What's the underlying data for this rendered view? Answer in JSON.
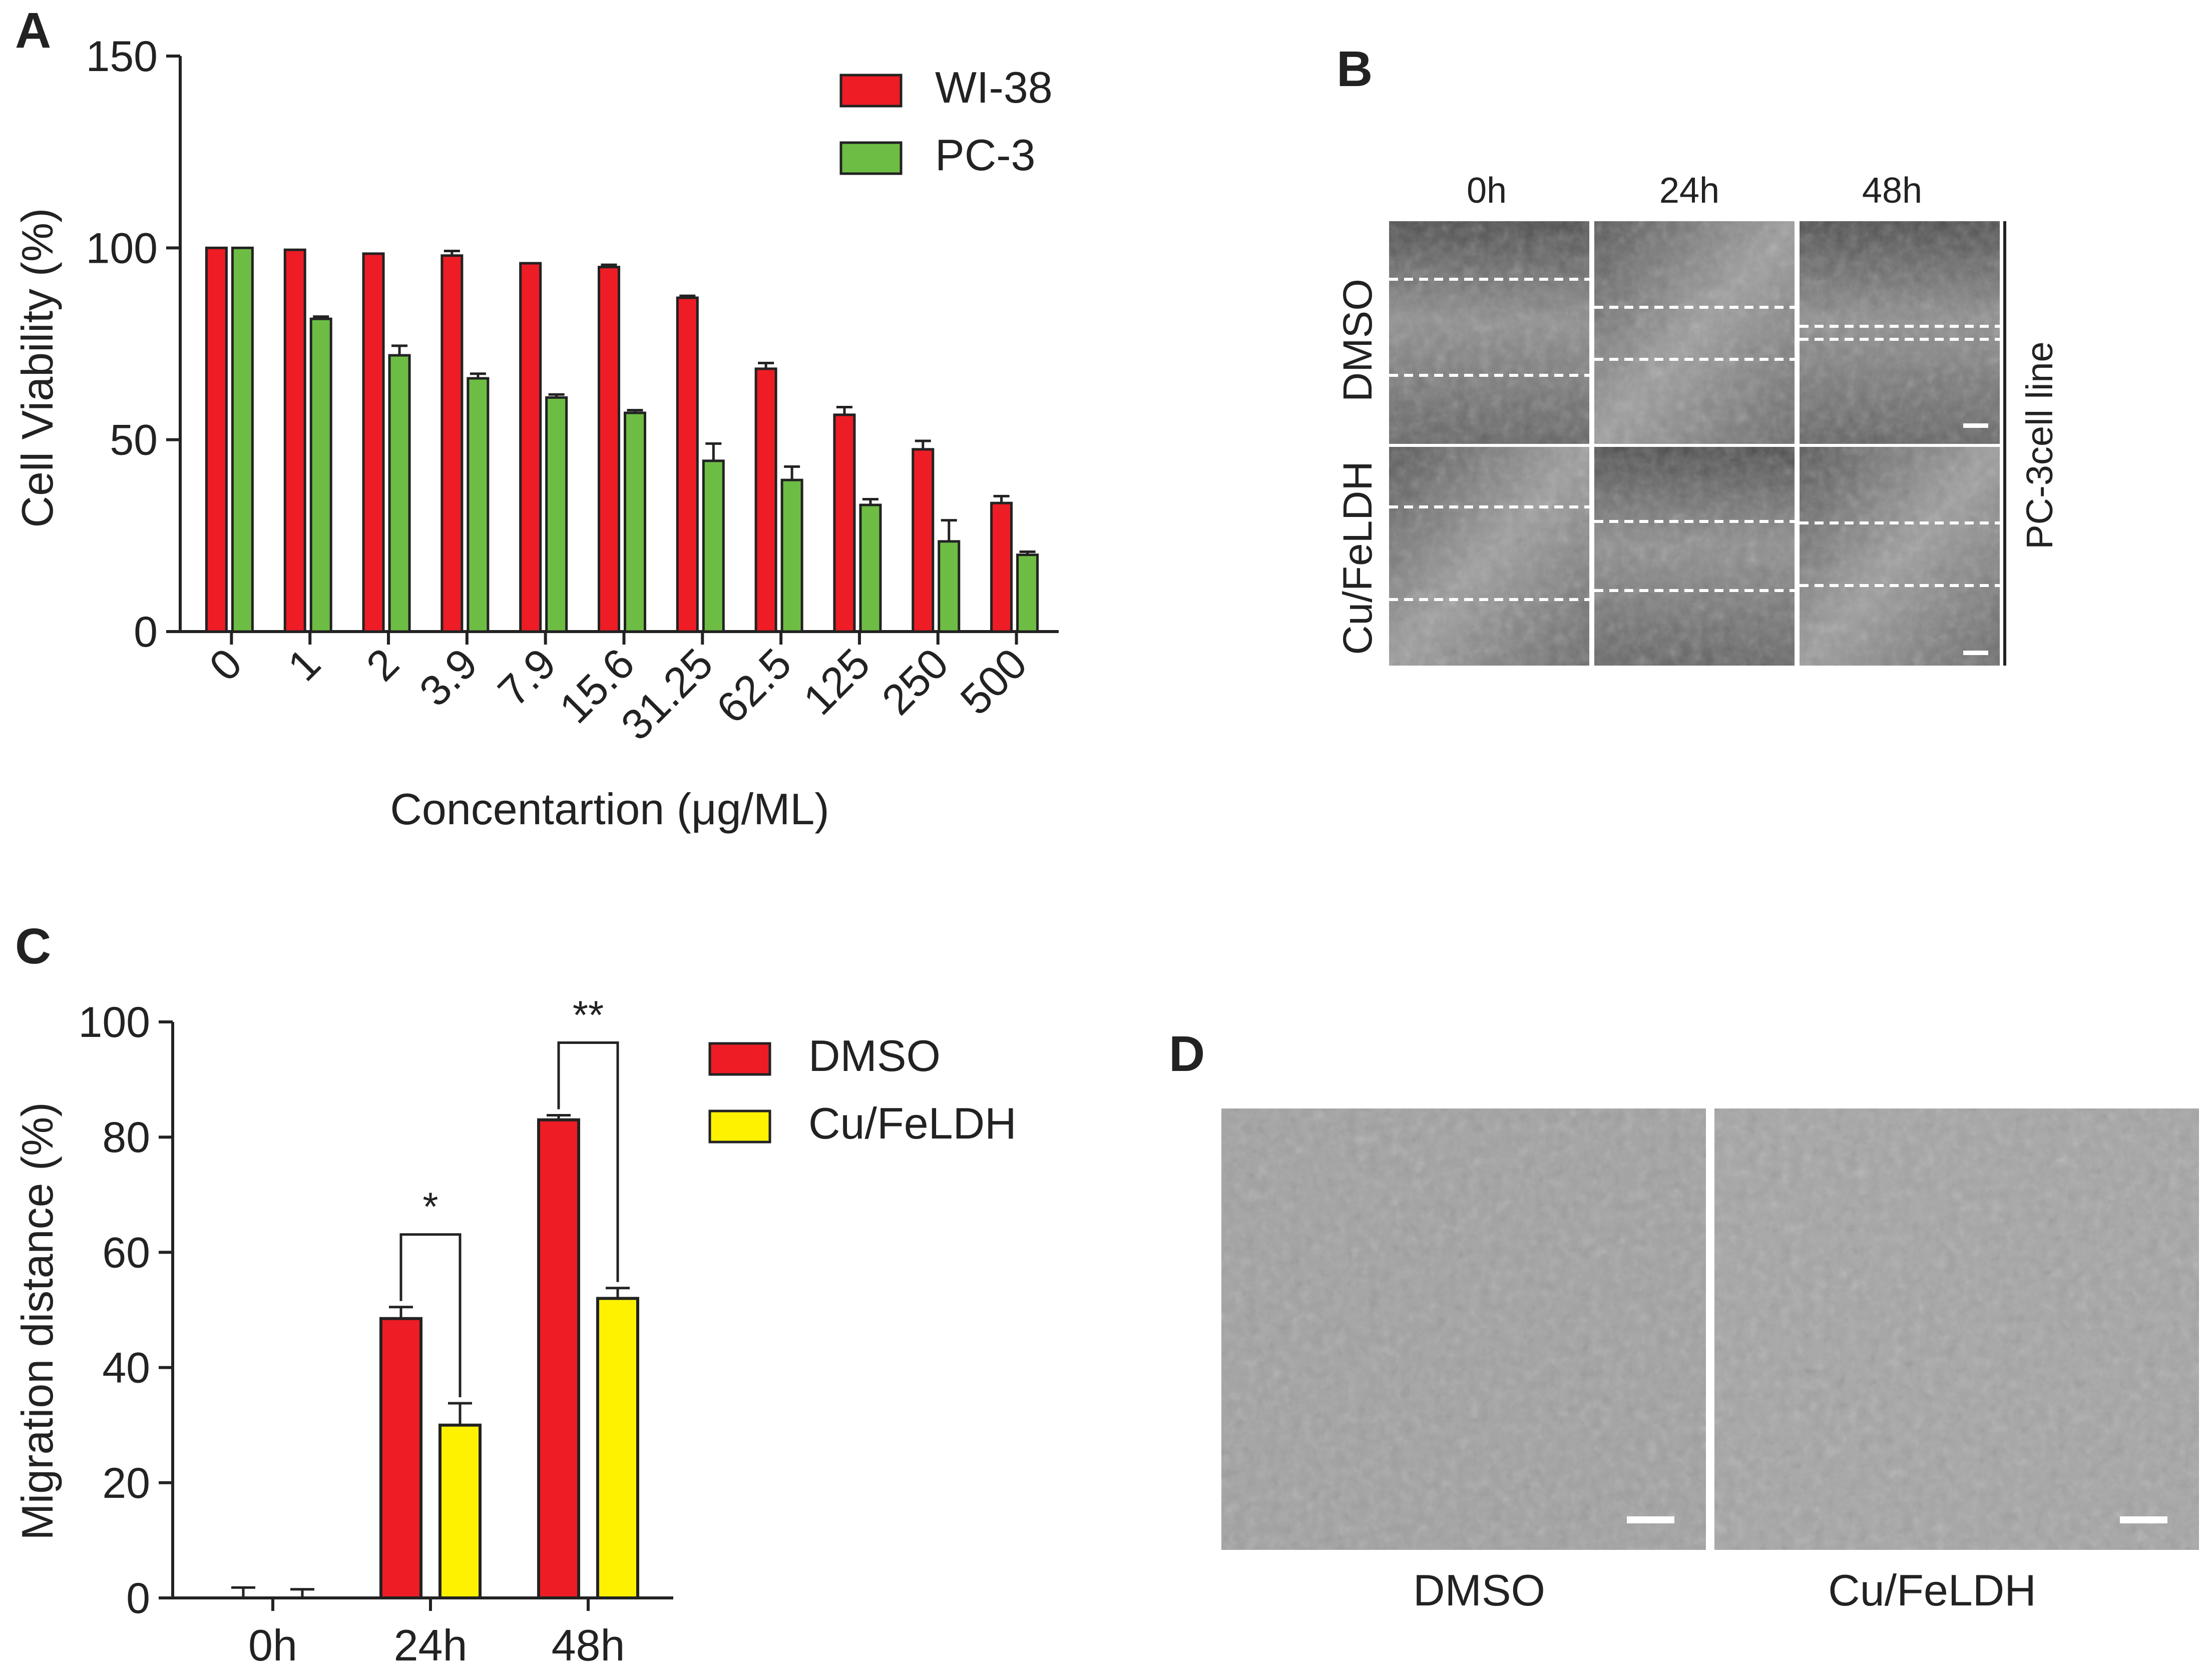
{
  "panels": {
    "A": "A",
    "B": "B",
    "C": "C",
    "D": "D"
  },
  "chart_data": [
    {
      "panel": "A",
      "type": "bar",
      "title": "",
      "xlabel": "Concentartion (μg/ML)",
      "ylabel": "Cell Viability  (%)",
      "ylim": [
        0,
        150
      ],
      "yticks": [
        "0",
        "50",
        "100",
        "150"
      ],
      "categories": [
        "0",
        "1",
        "2",
        "3.9",
        "7.9",
        "15.6",
        "31.25",
        "62.5",
        "125",
        "250",
        "500"
      ],
      "series": [
        {
          "name": "WI-38",
          "color": "#ee1c25",
          "values": [
            100,
            99.5,
            98.5,
            98,
            96,
            95,
            87,
            68.5,
            56.5,
            47.5,
            33.5
          ],
          "errors": [
            0,
            0,
            0,
            1.2,
            0,
            0.6,
            0.5,
            1.5,
            2,
            2.2,
            1.8
          ]
        },
        {
          "name": "PC-3",
          "color": "#6dbd45",
          "values": [
            100,
            81.5,
            72,
            66,
            61,
            57,
            44.5,
            39.5,
            33,
            23.5,
            20
          ],
          "errors": [
            0,
            0.6,
            2.5,
            1.2,
            0.8,
            0.7,
            4.5,
            3.5,
            1.5,
            5.5,
            0.8
          ]
        }
      ],
      "legend": "top-right"
    },
    {
      "panel": "C",
      "type": "bar",
      "title": "",
      "xlabel": "",
      "ylabel": "Migration distance (%)",
      "ylim": [
        0,
        100
      ],
      "yticks": [
        "0",
        "20",
        "40",
        "60",
        "80",
        "100"
      ],
      "categories": [
        "0h",
        "24h",
        "48h"
      ],
      "series": [
        {
          "name": "DMSO",
          "color": "#ee1c25",
          "values": [
            0,
            48.5,
            83
          ],
          "errors": [
            1.8,
            2,
            0.8
          ]
        },
        {
          "name": "Cu/FeLDH",
          "color": "#fff200",
          "values": [
            0,
            30,
            52
          ],
          "errors": [
            1.5,
            3.8,
            1.8
          ]
        }
      ],
      "significance": [
        {
          "category": "24h",
          "label": "*"
        },
        {
          "category": "48h",
          "label": "**"
        }
      ],
      "legend": "top-right"
    }
  ],
  "panel_b": {
    "columns": [
      "0h",
      "24h",
      "48h"
    ],
    "rows": [
      "DMSO",
      "Cu/FeLDH"
    ],
    "side_label": "PC-3cell line"
  },
  "panel_d": {
    "labels": [
      "DMSO",
      "Cu/FeLDH"
    ]
  }
}
